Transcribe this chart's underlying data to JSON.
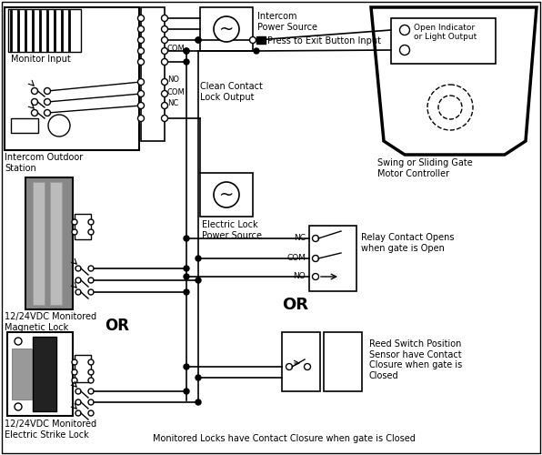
{
  "bg_color": "#ffffff",
  "fig_width": 5.96,
  "fig_height": 5.0,
  "dpi": 100,
  "labels": {
    "monitor_input": "Monitor Input",
    "intercom_outdoor": "Intercom Outdoor\nStation",
    "intercom_power": "Intercom\nPower Source",
    "press_to_exit": "Press to Exit Button Input",
    "clean_contact": "Clean Contact\nLock Output",
    "electric_lock_power": "Electric Lock\nPower Source",
    "magnetic_lock": "12/24VDC Monitored\nMagnetic Lock",
    "electric_strike": "12/24VDC Monitored\nElectric Strike Lock",
    "swing_gate": "Swing or Sliding Gate\nMotor Controller",
    "open_indicator": "Open Indicator\nor Light Output",
    "relay_contact": "Relay Contact Opens\nwhen gate is Open",
    "reed_switch": "Reed Switch Position\nSensor have Contact\nClosure when gate is\nClosed",
    "monitored_locks": "Monitored Locks have Contact Closure when gate is Closed",
    "nc": "NC",
    "com": "COM",
    "no": "NO",
    "or1": "OR",
    "or2": "OR"
  }
}
